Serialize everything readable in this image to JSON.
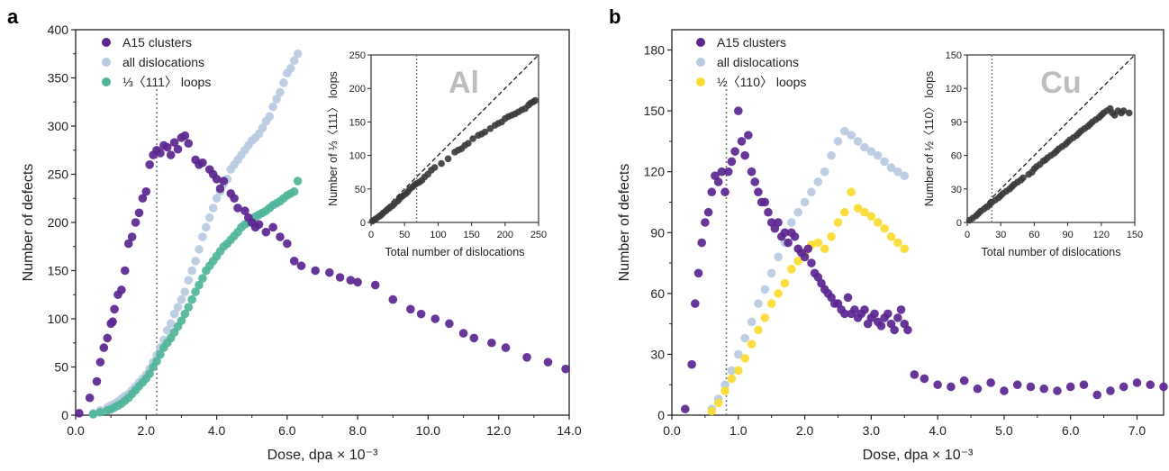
{
  "colors": {
    "a15": "#5b2590",
    "dislocations": "#b8cbe2",
    "loops_al": "#4fb59a",
    "loops_cu": "#fbdc30",
    "inset_points": "#3a3a3a"
  },
  "chart_data": [
    {
      "type": "scatter",
      "panel": "a",
      "xlabel": "Dose, dpa × 10⁻³",
      "ylabel": "Number of defects",
      "xlim": [
        0,
        14
      ],
      "ylim": [
        0,
        400
      ],
      "xticks": [
        "0.0",
        "2.0",
        "4.0",
        "6.0",
        "8.0",
        "10.0",
        "12.0",
        "14.0"
      ],
      "yticks": [
        "0",
        "50",
        "100",
        "150",
        "200",
        "250",
        "300",
        "350",
        "400"
      ],
      "vline_x": 2.3,
      "legend_position": "top-left",
      "series": [
        {
          "name": "A15 clusters",
          "color_key": "a15",
          "x": [
            0.1,
            0.4,
            0.6,
            0.7,
            0.8,
            0.9,
            1.0,
            1.05,
            1.1,
            1.2,
            1.3,
            1.4,
            1.5,
            1.6,
            1.7,
            1.8,
            1.9,
            2.0,
            2.1,
            2.2,
            2.3,
            2.4,
            2.5,
            2.6,
            2.7,
            2.8,
            2.9,
            3.0,
            3.1,
            3.2,
            3.4,
            3.5,
            3.6,
            3.8,
            3.9,
            4.0,
            4.1,
            4.2,
            4.4,
            4.5,
            4.6,
            4.8,
            4.9,
            5.0,
            5.1,
            5.2,
            5.4,
            5.6,
            5.8,
            6.0,
            6.2,
            6.4,
            6.8,
            7.2,
            7.5,
            7.8,
            8.0,
            8.5,
            9.0,
            9.5,
            9.8,
            10.2,
            10.6,
            11.0,
            11.3,
            11.8,
            12.2,
            12.8,
            13.4,
            13.9
          ],
          "y": [
            2,
            18,
            35,
            55,
            70,
            80,
            95,
            97,
            110,
            125,
            130,
            150,
            178,
            185,
            200,
            210,
            225,
            232,
            260,
            270,
            275,
            272,
            280,
            278,
            270,
            283,
            276,
            288,
            290,
            282,
            265,
            260,
            262,
            255,
            250,
            245,
            235,
            243,
            230,
            225,
            215,
            212,
            205,
            200,
            195,
            198,
            190,
            195,
            185,
            178,
            160,
            155,
            150,
            148,
            143,
            140,
            138,
            135,
            120,
            110,
            105,
            100,
            95,
            85,
            80,
            75,
            70,
            60,
            55,
            48
          ]
        },
        {
          "name": "all dislocations",
          "color_key": "dislocations",
          "x": [
            0.5,
            0.7,
            0.9,
            1.0,
            1.1,
            1.2,
            1.3,
            1.4,
            1.5,
            1.6,
            1.7,
            1.8,
            1.9,
            2.0,
            2.1,
            2.2,
            2.3,
            2.4,
            2.5,
            2.6,
            2.7,
            2.8,
            2.9,
            3.0,
            3.1,
            3.2,
            3.3,
            3.4,
            3.5,
            3.6,
            3.7,
            3.8,
            3.9,
            4.0,
            4.1,
            4.2,
            4.3,
            4.4,
            4.5,
            4.6,
            4.7,
            4.8,
            4.9,
            5.0,
            5.1,
            5.2,
            5.3,
            5.4,
            5.5,
            5.6,
            5.7,
            5.8,
            5.9,
            6.0,
            6.1,
            6.2,
            6.3
          ],
          "y": [
            2,
            5,
            8,
            10,
            12,
            14,
            17,
            20,
            22,
            26,
            30,
            34,
            38,
            42,
            48,
            55,
            62,
            70,
            78,
            88,
            95,
            105,
            112,
            120,
            128,
            140,
            150,
            160,
            172,
            185,
            195,
            205,
            215,
            225,
            232,
            240,
            245,
            255,
            260,
            265,
            270,
            275,
            280,
            285,
            288,
            292,
            298,
            305,
            310,
            320,
            328,
            335,
            345,
            355,
            360,
            368,
            375
          ]
        },
        {
          "name": "⅓〈111〉 loops",
          "color_key": "loops_al",
          "x": [
            0.5,
            0.7,
            0.9,
            1.0,
            1.1,
            1.2,
            1.3,
            1.4,
            1.5,
            1.6,
            1.7,
            1.8,
            1.9,
            2.0,
            2.1,
            2.2,
            2.3,
            2.4,
            2.5,
            2.6,
            2.7,
            2.8,
            2.9,
            3.0,
            3.1,
            3.2,
            3.3,
            3.4,
            3.5,
            3.6,
            3.7,
            3.8,
            3.9,
            4.0,
            4.1,
            4.2,
            4.3,
            4.4,
            4.5,
            4.6,
            4.7,
            4.8,
            4.9,
            5.0,
            5.1,
            5.2,
            5.3,
            5.4,
            5.5,
            5.6,
            5.7,
            5.8,
            5.9,
            6.0,
            6.1,
            6.2,
            6.3
          ],
          "y": [
            1,
            3,
            5,
            6,
            8,
            10,
            12,
            15,
            18,
            22,
            26,
            30,
            34,
            38,
            43,
            50,
            56,
            63,
            70,
            75,
            80,
            86,
            92,
            98,
            105,
            112,
            120,
            128,
            135,
            142,
            150,
            155,
            160,
            165,
            170,
            175,
            178,
            182,
            186,
            190,
            195,
            198,
            200,
            203,
            206,
            208,
            210,
            212,
            215,
            218,
            220,
            222,
            225,
            228,
            230,
            232,
            243
          ]
        }
      ],
      "inset": {
        "element": "Al",
        "xlabel": "Total number of dislocations",
        "ylabel": "Number of  ⅓〈111〉 loops",
        "xlim": [
          0,
          250
        ],
        "ylim": [
          0,
          250
        ],
        "xticks": [
          "0",
          "50",
          "100",
          "150",
          "200",
          "250"
        ],
        "yticks": [
          "0",
          "50",
          "100",
          "150",
          "200",
          "250"
        ],
        "vline_x": 68,
        "x": [
          2,
          5,
          8,
          12,
          15,
          18,
          22,
          25,
          28,
          32,
          35,
          40,
          42,
          45,
          48,
          52,
          55,
          58,
          62,
          65,
          68,
          72,
          76,
          80,
          85,
          90,
          95,
          105,
          115,
          125,
          130,
          135,
          140,
          145,
          152,
          160,
          165,
          170,
          178,
          185,
          190,
          195,
          200,
          205,
          210,
          215,
          220,
          225,
          230,
          235,
          238,
          242,
          245
        ],
        "y": [
          2,
          4,
          6,
          9,
          11,
          14,
          17,
          20,
          22,
          25,
          28,
          32,
          35,
          38,
          40,
          43,
          46,
          50,
          53,
          56,
          58,
          60,
          63,
          68,
          72,
          78,
          82,
          88,
          95,
          105,
          108,
          110,
          115,
          118,
          125,
          130,
          132,
          135,
          140,
          145,
          148,
          150,
          155,
          158,
          160,
          162,
          165,
          168,
          170,
          175,
          178,
          180,
          182
        ]
      }
    },
    {
      "type": "scatter",
      "panel": "b",
      "xlabel": "Dose, dpa × 10⁻³",
      "ylabel": "Number of defects",
      "xlim": [
        0,
        7.4
      ],
      "ylim": [
        0,
        190
      ],
      "xticks": [
        "0.0",
        "1.0",
        "2.0",
        "3.0",
        "4.0",
        "5.0",
        "6.0",
        "7.0"
      ],
      "yticks": [
        "0",
        "30",
        "60",
        "90",
        "120",
        "150",
        "180"
      ],
      "vline_x": 0.82,
      "legend_position": "top-left",
      "series": [
        {
          "name": "A15 clusters",
          "color_key": "a15",
          "x": [
            0.2,
            0.3,
            0.35,
            0.4,
            0.45,
            0.5,
            0.55,
            0.6,
            0.65,
            0.7,
            0.75,
            0.8,
            0.85,
            0.9,
            0.95,
            1.0,
            1.05,
            1.1,
            1.15,
            1.2,
            1.25,
            1.3,
            1.35,
            1.4,
            1.45,
            1.5,
            1.55,
            1.6,
            1.65,
            1.7,
            1.75,
            1.8,
            1.85,
            1.9,
            1.95,
            2.0,
            2.05,
            2.1,
            2.15,
            2.2,
            2.25,
            2.3,
            2.35,
            2.4,
            2.45,
            2.5,
            2.55,
            2.6,
            2.65,
            2.7,
            2.75,
            2.8,
            2.85,
            2.9,
            2.95,
            3.0,
            3.05,
            3.1,
            3.15,
            3.2,
            3.25,
            3.3,
            3.35,
            3.4,
            3.45,
            3.5,
            3.55,
            3.65,
            3.8,
            4.0,
            4.2,
            4.4,
            4.6,
            4.8,
            5.0,
            5.2,
            5.4,
            5.6,
            5.8,
            6.0,
            6.2,
            6.4,
            6.6,
            6.8,
            7.0,
            7.2,
            7.4
          ],
          "y": [
            3,
            25,
            55,
            70,
            85,
            95,
            100,
            110,
            118,
            115,
            120,
            110,
            120,
            125,
            130,
            150,
            135,
            128,
            138,
            120,
            115,
            110,
            105,
            105,
            100,
            95,
            92,
            95,
            88,
            90,
            85,
            90,
            88,
            82,
            80,
            78,
            82,
            75,
            70,
            68,
            65,
            62,
            60,
            58,
            55,
            55,
            52,
            50,
            58,
            50,
            52,
            48,
            50,
            52,
            45,
            48,
            50,
            46,
            44,
            48,
            50,
            45,
            42,
            48,
            52,
            45,
            42,
            20,
            18,
            15,
            14,
            17,
            13,
            16,
            12,
            15,
            14,
            13,
            12,
            14,
            15,
            10,
            12,
            14,
            16,
            15,
            14
          ]
        },
        {
          "name": "all dislocations",
          "color_key": "dislocations",
          "x": [
            0.6,
            0.7,
            0.8,
            0.9,
            1.0,
            1.1,
            1.2,
            1.3,
            1.4,
            1.5,
            1.6,
            1.7,
            1.8,
            1.9,
            2.0,
            2.1,
            2.2,
            2.3,
            2.4,
            2.5,
            2.6,
            2.7,
            2.8,
            2.9,
            3.0,
            3.1,
            3.2,
            3.3,
            3.4,
            3.5
          ],
          "y": [
            3,
            8,
            15,
            22,
            30,
            38,
            46,
            55,
            62,
            70,
            78,
            85,
            95,
            100,
            105,
            110,
            115,
            120,
            128,
            135,
            140,
            138,
            135,
            132,
            130,
            128,
            125,
            122,
            120,
            118
          ]
        },
        {
          "name": "½〈110〉 loops",
          "color_key": "loops_cu",
          "x": [
            0.6,
            0.7,
            0.8,
            0.9,
            1.0,
            1.1,
            1.2,
            1.3,
            1.4,
            1.5,
            1.6,
            1.7,
            1.8,
            1.9,
            2.0,
            2.1,
            2.2,
            2.3,
            2.4,
            2.5,
            2.6,
            2.7,
            2.8,
            2.9,
            3.0,
            3.1,
            3.2,
            3.3,
            3.4,
            3.5
          ],
          "y": [
            2,
            6,
            12,
            18,
            22,
            28,
            35,
            42,
            48,
            55,
            60,
            65,
            72,
            76,
            80,
            84,
            85,
            82,
            88,
            95,
            100,
            110,
            102,
            100,
            98,
            95,
            92,
            88,
            85,
            82
          ]
        }
      ],
      "inset": {
        "element": "Cu",
        "xlabel": "Total number of dislocations",
        "ylabel": "Number of  ½〈110〉 loops",
        "xlim": [
          0,
          150
        ],
        "ylim": [
          0,
          150
        ],
        "xticks": [
          "0",
          "30",
          "60",
          "90",
          "120",
          "150"
        ],
        "yticks": [
          "0",
          "30",
          "60",
          "90",
          "120",
          "150"
        ],
        "vline_x": 22,
        "x": [
          2,
          5,
          8,
          10,
          12,
          15,
          18,
          20,
          22,
          25,
          28,
          30,
          32,
          35,
          38,
          40,
          42,
          45,
          48,
          50,
          55,
          58,
          60,
          62,
          65,
          68,
          70,
          72,
          75,
          78,
          80,
          82,
          85,
          88,
          90,
          92,
          95,
          98,
          100,
          102,
          105,
          108,
          110,
          112,
          115,
          118,
          120,
          122,
          125,
          128,
          130,
          132,
          135,
          138,
          140,
          145
        ],
        "y": [
          2,
          4,
          6,
          8,
          10,
          12,
          14,
          16,
          18,
          20,
          22,
          24,
          26,
          28,
          30,
          32,
          34,
          36,
          38,
          40,
          43,
          45,
          48,
          50,
          52,
          55,
          56,
          58,
          60,
          62,
          64,
          66,
          68,
          70,
          72,
          74,
          76,
          78,
          80,
          82,
          84,
          86,
          88,
          90,
          92,
          94,
          96,
          98,
          100,
          102,
          98,
          96,
          100,
          98,
          100,
          98
        ]
      }
    }
  ]
}
